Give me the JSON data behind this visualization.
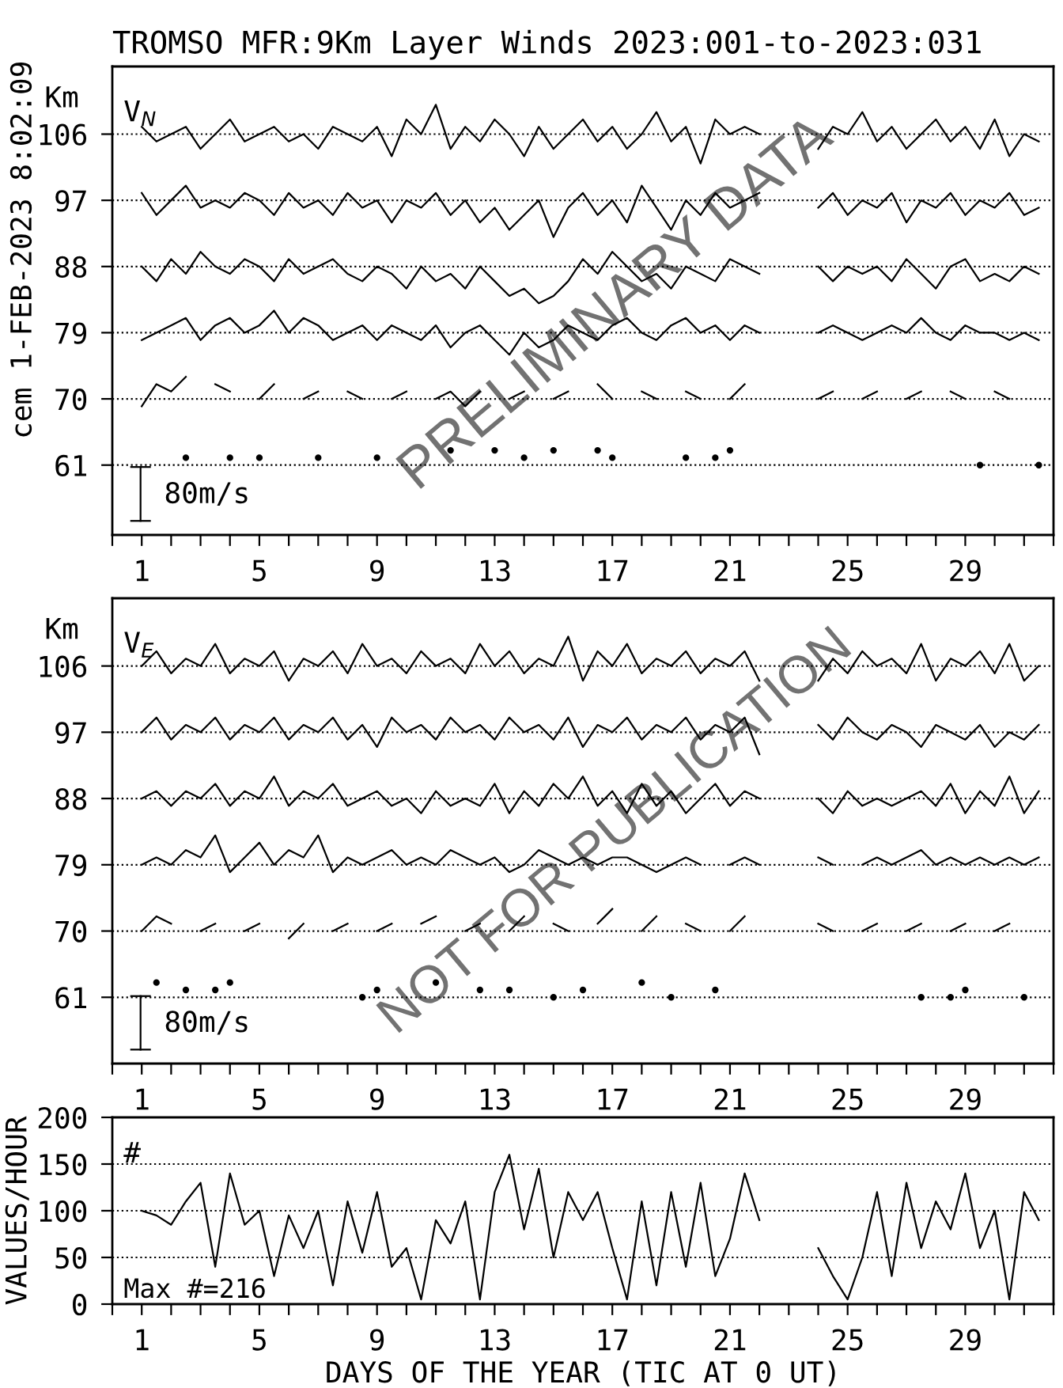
{
  "chart_data": [
    {
      "type": "line",
      "title": "TROMSO MFR:9Km Layer Winds 2023:001-to-2023:031",
      "ylabel": "Km",
      "annotations": [
        "cem 1-FEB-2023 8:02:09",
        "V$_{N}$",
        "80m/s",
        "PRELIMINARY DATA"
      ],
      "x": [
        1,
        1.5,
        2,
        2.5,
        3,
        3.5,
        4,
        4.5,
        5,
        5.5,
        6,
        6.5,
        7,
        7.5,
        8,
        8.5,
        9,
        9.5,
        10,
        10.5,
        11,
        11.5,
        12,
        12.5,
        13,
        13.5,
        14,
        14.5,
        15,
        15.5,
        16,
        16.5,
        17,
        17.5,
        18,
        18.5,
        19,
        19.5,
        20,
        20.5,
        21,
        21.5,
        22,
        22.5,
        23,
        23.5,
        24,
        24.5,
        25,
        25.5,
        26,
        26.5,
        27,
        27.5,
        28,
        28.5,
        29,
        29.5,
        30,
        30.5,
        31,
        31.5
      ],
      "series": [
        {
          "color": "#000000",
          "values": [
            107,
            105,
            106,
            107,
            104,
            106,
            108,
            105,
            106,
            107,
            105,
            106,
            104,
            107,
            106,
            105,
            107,
            103,
            108,
            106,
            110,
            104,
            107,
            105,
            108,
            106,
            103,
            107,
            104,
            106,
            108,
            105,
            107,
            104,
            106,
            109,
            105,
            107,
            102,
            108,
            106,
            107,
            106,
            null,
            null,
            null,
            104,
            107,
            106,
            109,
            105,
            107,
            104,
            106,
            108,
            105,
            107,
            104,
            108,
            103,
            106,
            105
          ]
        },
        {
          "color": "#000000",
          "values": [
            98,
            95,
            97,
            99,
            96,
            97,
            96,
            98,
            97,
            95,
            98,
            96,
            97,
            95,
            98,
            96,
            97,
            94,
            97,
            96,
            98,
            95,
            97,
            94,
            96,
            93,
            95,
            97,
            92,
            96,
            98,
            95,
            97,
            94,
            99,
            96,
            93,
            97,
            95,
            98,
            96,
            97,
            98,
            null,
            null,
            null,
            96,
            98,
            95,
            97,
            96,
            98,
            94,
            97,
            96,
            98,
            95,
            97,
            96,
            98,
            95,
            96
          ]
        },
        {
          "color": "#000000",
          "values": [
            88,
            86,
            89,
            87,
            90,
            88,
            87,
            89,
            88,
            86,
            89,
            87,
            88,
            89,
            87,
            86,
            88,
            87,
            85,
            88,
            86,
            87,
            85,
            88,
            86,
            84,
            85,
            83,
            84,
            86,
            89,
            87,
            90,
            88,
            86,
            87,
            85,
            88,
            87,
            86,
            89,
            88,
            87,
            null,
            null,
            null,
            88,
            86,
            88,
            87,
            88,
            86,
            89,
            87,
            85,
            88,
            89,
            86,
            87,
            86,
            88,
            87
          ]
        },
        {
          "color": "#000000",
          "values": [
            78,
            79,
            80,
            81,
            78,
            80,
            81,
            79,
            80,
            82,
            79,
            81,
            80,
            78,
            79,
            80,
            78,
            80,
            79,
            78,
            80,
            77,
            79,
            80,
            78,
            76,
            79,
            77,
            78,
            80,
            79,
            78,
            80,
            81,
            79,
            78,
            80,
            81,
            79,
            80,
            78,
            80,
            79,
            null,
            null,
            null,
            79,
            80,
            79,
            78,
            79,
            80,
            79,
            81,
            79,
            78,
            80,
            79,
            79,
            78,
            79,
            78
          ]
        },
        {
          "color": "#000000",
          "values": [
            69,
            72,
            71,
            73,
            null,
            72,
            71,
            null,
            70,
            72,
            null,
            70,
            71,
            null,
            71,
            70,
            null,
            70,
            71,
            null,
            70,
            71,
            69,
            71,
            null,
            70,
            71,
            null,
            70,
            71,
            null,
            72,
            70,
            null,
            71,
            70,
            null,
            71,
            70,
            null,
            70,
            72,
            null,
            null,
            null,
            null,
            70,
            71,
            null,
            70,
            71,
            null,
            70,
            71,
            null,
            71,
            70,
            null,
            71,
            70,
            null,
            null
          ]
        },
        {
          "type": "scatter",
          "marker": "circle",
          "color": "#000000",
          "x": [
            2.5,
            4,
            5,
            7,
            9,
            11.5,
            13,
            14,
            15,
            16.5,
            17,
            19.5,
            20.5,
            21,
            29.5,
            31.5
          ],
          "values": [
            62,
            62,
            62,
            62,
            62,
            63,
            63,
            62,
            63,
            63,
            62,
            62,
            62,
            63,
            61,
            61
          ]
        }
      ],
      "xlim": [
        0,
        32
      ],
      "xticks": [
        {
          "value": 0,
          "label": null
        },
        1,
        {
          "value": 2,
          "label": null
        },
        {
          "value": 3,
          "label": null
        },
        {
          "value": 4,
          "label": null
        },
        5,
        {
          "value": 6,
          "label": null
        },
        {
          "value": 7,
          "label": null
        },
        {
          "value": 8,
          "label": null
        },
        9,
        {
          "value": 10,
          "label": null
        },
        {
          "value": 11,
          "label": null
        },
        {
          "value": 12,
          "label": null
        },
        13,
        {
          "value": 14,
          "label": null
        },
        {
          "value": 15,
          "label": null
        },
        {
          "value": 16,
          "label": null
        },
        17,
        {
          "value": 18,
          "label": null
        },
        {
          "value": 19,
          "label": null
        },
        {
          "value": 20,
          "label": null
        },
        21,
        {
          "value": 22,
          "label": null
        },
        {
          "value": 23,
          "label": null
        },
        {
          "value": 24,
          "label": null
        },
        25,
        {
          "value": 26,
          "label": null
        },
        {
          "value": 27,
          "label": null
        },
        {
          "value": 28,
          "label": null
        },
        29,
        {
          "value": 30,
          "label": null
        },
        {
          "value": 31,
          "label": null
        },
        {
          "value": 32,
          "label": null
        }
      ],
      "ylim": [
        51.5,
        115.2
      ],
      "yticks": [
        61,
        70,
        79,
        88,
        97,
        106
      ],
      "grid": "y",
      "line_style": "solid"
    },
    {
      "type": "line",
      "ylabel": "Km",
      "annotations": [
        "V$_{E}$",
        "80m/s",
        "NOT FOR PUBLICATION"
      ],
      "x": [
        1,
        1.5,
        2,
        2.5,
        3,
        3.5,
        4,
        4.5,
        5,
        5.5,
        6,
        6.5,
        7,
        7.5,
        8,
        8.5,
        9,
        9.5,
        10,
        10.5,
        11,
        11.5,
        12,
        12.5,
        13,
        13.5,
        14,
        14.5,
        15,
        15.5,
        16,
        16.5,
        17,
        17.5,
        18,
        18.5,
        19,
        19.5,
        20,
        20.5,
        21,
        21.5,
        22,
        22.5,
        23,
        23.5,
        24,
        24.5,
        25,
        25.5,
        26,
        26.5,
        27,
        27.5,
        28,
        28.5,
        29,
        29.5,
        30,
        30.5,
        31,
        31.5
      ],
      "series": [
        {
          "color": "#000000",
          "values": [
            106,
            108,
            105,
            107,
            106,
            109,
            105,
            107,
            106,
            108,
            104,
            107,
            106,
            108,
            105,
            109,
            106,
            107,
            105,
            108,
            106,
            107,
            105,
            109,
            106,
            108,
            105,
            107,
            106,
            110,
            104,
            108,
            106,
            109,
            105,
            107,
            106,
            108,
            105,
            107,
            106,
            108,
            104,
            null,
            null,
            null,
            104,
            107,
            105,
            108,
            106,
            107,
            105,
            109,
            104,
            107,
            106,
            108,
            105,
            109,
            104,
            106
          ]
        },
        {
          "color": "#000000",
          "values": [
            97,
            99,
            96,
            98,
            97,
            99,
            96,
            98,
            97,
            99,
            96,
            98,
            97,
            99,
            96,
            98,
            95,
            99,
            97,
            98,
            96,
            99,
            97,
            98,
            96,
            99,
            97,
            98,
            96,
            99,
            95,
            98,
            97,
            99,
            96,
            98,
            97,
            99,
            96,
            98,
            97,
            99,
            94,
            null,
            null,
            null,
            98,
            96,
            99,
            97,
            96,
            98,
            97,
            95,
            98,
            97,
            96,
            98,
            95,
            97,
            96,
            98
          ]
        },
        {
          "color": "#000000",
          "values": [
            88,
            89,
            87,
            89,
            88,
            90,
            87,
            89,
            88,
            91,
            87,
            89,
            88,
            90,
            87,
            88,
            89,
            87,
            88,
            86,
            89,
            87,
            88,
            87,
            90,
            86,
            89,
            87,
            90,
            88,
            91,
            87,
            89,
            86,
            90,
            87,
            89,
            86,
            88,
            90,
            87,
            89,
            88,
            null,
            null,
            null,
            88,
            86,
            89,
            87,
            88,
            87,
            88,
            89,
            87,
            90,
            86,
            89,
            87,
            91,
            86,
            89
          ]
        },
        {
          "color": "#000000",
          "values": [
            79,
            80,
            79,
            81,
            80,
            83,
            78,
            80,
            82,
            79,
            81,
            80,
            83,
            78,
            80,
            79,
            80,
            81,
            79,
            80,
            79,
            81,
            80,
            79,
            80,
            78,
            79,
            81,
            80,
            79,
            80,
            79,
            80,
            80,
            79,
            78,
            79,
            80,
            79,
            null,
            79,
            80,
            79,
            null,
            null,
            null,
            80,
            79,
            null,
            79,
            80,
            79,
            80,
            81,
            79,
            80,
            79,
            80,
            79,
            80,
            79,
            80
          ]
        },
        {
          "color": "#000000",
          "values": [
            70,
            72,
            71,
            null,
            70,
            71,
            null,
            70,
            71,
            null,
            69,
            71,
            null,
            70,
            71,
            null,
            70,
            71,
            null,
            71,
            72,
            null,
            70,
            71,
            null,
            70,
            72,
            null,
            71,
            70,
            null,
            71,
            73,
            null,
            70,
            72,
            null,
            71,
            70,
            null,
            70,
            72,
            null,
            null,
            null,
            null,
            71,
            70,
            null,
            70,
            71,
            null,
            70,
            71,
            null,
            70,
            71,
            null,
            70,
            71,
            null,
            null
          ]
        },
        {
          "type": "scatter",
          "marker": "circle",
          "color": "#000000",
          "x": [
            1.5,
            2.5,
            3.5,
            4,
            8.5,
            9,
            11,
            12.5,
            13.5,
            15,
            16,
            18,
            19,
            20.5,
            27.5,
            28.5,
            29,
            31
          ],
          "values": [
            63,
            62,
            62,
            63,
            61,
            62,
            63,
            62,
            62,
            61,
            62,
            63,
            61,
            62,
            61,
            61,
            62,
            61
          ]
        }
      ],
      "xlim": [
        0,
        32
      ],
      "xticks": [
        {
          "value": 0,
          "label": null
        },
        1,
        {
          "value": 2,
          "label": null
        },
        {
          "value": 3,
          "label": null
        },
        {
          "value": 4,
          "label": null
        },
        5,
        {
          "value": 6,
          "label": null
        },
        {
          "value": 7,
          "label": null
        },
        {
          "value": 8,
          "label": null
        },
        9,
        {
          "value": 10,
          "label": null
        },
        {
          "value": 11,
          "label": null
        },
        {
          "value": 12,
          "label": null
        },
        13,
        {
          "value": 14,
          "label": null
        },
        {
          "value": 15,
          "label": null
        },
        {
          "value": 16,
          "label": null
        },
        17,
        {
          "value": 18,
          "label": null
        },
        {
          "value": 19,
          "label": null
        },
        {
          "value": 20,
          "label": null
        },
        21,
        {
          "value": 22,
          "label": null
        },
        {
          "value": 23,
          "label": null
        },
        {
          "value": 24,
          "label": null
        },
        25,
        {
          "value": 26,
          "label": null
        },
        {
          "value": 27,
          "label": null
        },
        {
          "value": 28,
          "label": null
        },
        29,
        {
          "value": 30,
          "label": null
        },
        {
          "value": 31,
          "label": null
        },
        {
          "value": 32,
          "label": null
        }
      ],
      "ylim": [
        52,
        115.2
      ],
      "yticks": [
        61,
        70,
        79,
        88,
        97,
        106
      ],
      "grid": "y",
      "line_style": "solid"
    },
    {
      "type": "line",
      "ylabel": "VALUES/HOUR",
      "xlabel": "DAYS OF THE YEAR (TIC AT 0 UT)",
      "annotations": [
        "#",
        "Max #=216"
      ],
      "x": [
        1,
        1.5,
        2,
        2.5,
        3,
        3.5,
        4,
        4.5,
        5,
        5.5,
        6,
        6.5,
        7,
        7.5,
        8,
        8.5,
        9,
        9.5,
        10,
        10.5,
        11,
        11.5,
        12,
        12.5,
        13,
        13.5,
        14,
        14.5,
        15,
        15.5,
        16,
        16.5,
        17,
        17.5,
        18,
        18.5,
        19,
        19.5,
        20,
        20.5,
        21,
        21.5,
        22,
        22.5,
        23,
        23.5,
        24,
        24.5,
        25,
        25.5,
        26,
        26.5,
        27,
        27.5,
        28,
        28.5,
        29,
        29.5,
        30,
        30.5,
        31,
        31.5
      ],
      "series": [
        {
          "color": "#000000",
          "values": [
            100,
            95,
            85,
            110,
            130,
            40,
            140,
            85,
            100,
            30,
            95,
            60,
            100,
            20,
            110,
            55,
            120,
            40,
            60,
            5,
            90,
            65,
            110,
            5,
            120,
            160,
            80,
            145,
            50,
            120,
            90,
            120,
            60,
            5,
            110,
            20,
            120,
            40,
            130,
            30,
            70,
            140,
            90,
            null,
            null,
            null,
            60,
            30,
            5,
            50,
            120,
            30,
            130,
            60,
            110,
            80,
            140,
            60,
            100,
            5,
            120,
            90
          ]
        }
      ],
      "xlim": [
        0,
        32
      ],
      "xticks": [
        {
          "value": 0,
          "label": null
        },
        1,
        {
          "value": 2,
          "label": null
        },
        {
          "value": 3,
          "label": null
        },
        {
          "value": 4,
          "label": null
        },
        5,
        {
          "value": 6,
          "label": null
        },
        {
          "value": 7,
          "label": null
        },
        {
          "value": 8,
          "label": null
        },
        9,
        {
          "value": 10,
          "label": null
        },
        {
          "value": 11,
          "label": null
        },
        {
          "value": 12,
          "label": null
        },
        13,
        {
          "value": 14,
          "label": null
        },
        {
          "value": 15,
          "label": null
        },
        {
          "value": 16,
          "label": null
        },
        17,
        {
          "value": 18,
          "label": null
        },
        {
          "value": 19,
          "label": null
        },
        {
          "value": 20,
          "label": null
        },
        21,
        {
          "value": 22,
          "label": null
        },
        {
          "value": 23,
          "label": null
        },
        {
          "value": 24,
          "label": null
        },
        25,
        {
          "value": 26,
          "label": null
        },
        {
          "value": 27,
          "label": null
        },
        {
          "value": 28,
          "label": null
        },
        29,
        {
          "value": 30,
          "label": null
        },
        {
          "value": 31,
          "label": null
        },
        {
          "value": 32,
          "label": null
        }
      ],
      "ylim": [
        0,
        200
      ],
      "yticks": [
        0,
        50,
        100,
        150,
        200
      ],
      "grid": "y",
      "line_style": "solid"
    }
  ]
}
